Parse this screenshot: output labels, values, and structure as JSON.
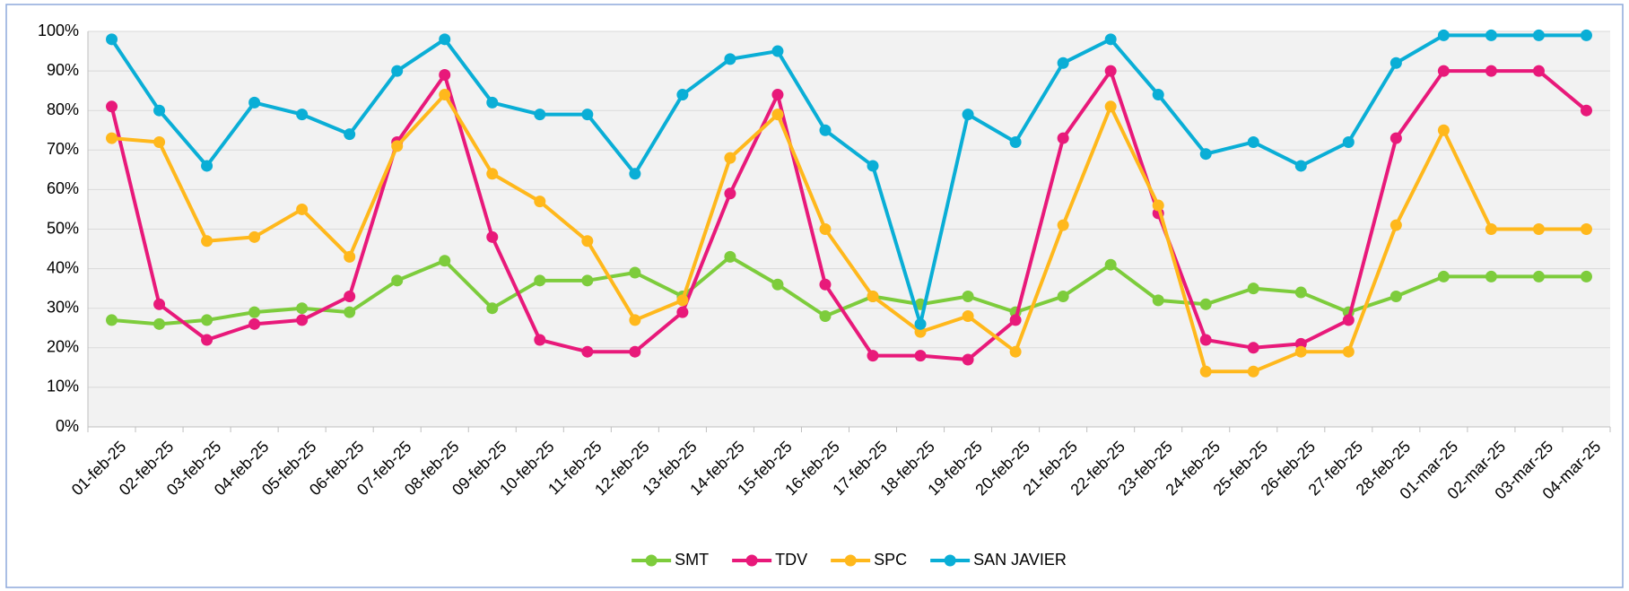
{
  "chart_data": {
    "type": "line",
    "categories": [
      "01-feb-25",
      "02-feb-25",
      "03-feb-25",
      "04-feb-25",
      "05-feb-25",
      "06-feb-25",
      "07-feb-25",
      "08-feb-25",
      "09-feb-25",
      "10-feb-25",
      "11-feb-25",
      "12-feb-25",
      "13-feb-25",
      "14-feb-25",
      "15-feb-25",
      "16-feb-25",
      "17-feb-25",
      "18-feb-25",
      "19-feb-25",
      "20-feb-25",
      "21-feb-25",
      "22-feb-25",
      "23-feb-25",
      "24-feb-25",
      "25-feb-25",
      "26-feb-25",
      "27-feb-25",
      "28-feb-25",
      "01-mar-25",
      "02-mar-25",
      "03-mar-25",
      "04-mar-25"
    ],
    "series": [
      {
        "name": "SMT",
        "color": "#7dcc3c",
        "values": [
          27,
          26,
          27,
          29,
          30,
          29,
          37,
          42,
          30,
          37,
          37,
          39,
          33,
          43,
          36,
          28,
          33,
          31,
          33,
          29,
          33,
          41,
          32,
          31,
          35,
          34,
          29,
          33,
          38,
          38,
          38,
          38
        ]
      },
      {
        "name": "TDV",
        "color": "#e8197a",
        "values": [
          81,
          31,
          22,
          26,
          27,
          33,
          72,
          89,
          48,
          22,
          19,
          19,
          29,
          59,
          84,
          36,
          18,
          18,
          17,
          27,
          73,
          90,
          54,
          22,
          20,
          21,
          27,
          73,
          90,
          90,
          90,
          80
        ]
      },
      {
        "name": "SPC",
        "color": "#ffb81c",
        "values": [
          73,
          72,
          47,
          48,
          55,
          43,
          71,
          84,
          64,
          57,
          47,
          27,
          32,
          68,
          79,
          50,
          33,
          24,
          28,
          19,
          51,
          81,
          56,
          14,
          14,
          19,
          19,
          51,
          75,
          50,
          50,
          50
        ]
      },
      {
        "name": "SAN JAVIER",
        "color": "#0aaed6",
        "values": [
          98,
          80,
          66,
          82,
          79,
          74,
          90,
          98,
          82,
          79,
          79,
          64,
          84,
          93,
          95,
          75,
          66,
          26,
          79,
          72,
          92,
          98,
          84,
          69,
          72,
          66,
          72,
          92,
          99,
          99,
          99,
          99
        ]
      }
    ],
    "ylim": [
      0,
      100
    ],
    "yticks": [
      {
        "value": 0,
        "label": "0%"
      },
      {
        "value": 10,
        "label": "10%"
      },
      {
        "value": 20,
        "label": "20%"
      },
      {
        "value": 30,
        "label": "30%"
      },
      {
        "value": 40,
        "label": "40%"
      },
      {
        "value": 50,
        "label": "50%"
      },
      {
        "value": 60,
        "label": "60%"
      },
      {
        "value": 70,
        "label": "70%"
      },
      {
        "value": 80,
        "label": "80%"
      },
      {
        "value": 90,
        "label": "90%"
      },
      {
        "value": 100,
        "label": "100%"
      }
    ],
    "grid": true,
    "legend": "bottom"
  }
}
